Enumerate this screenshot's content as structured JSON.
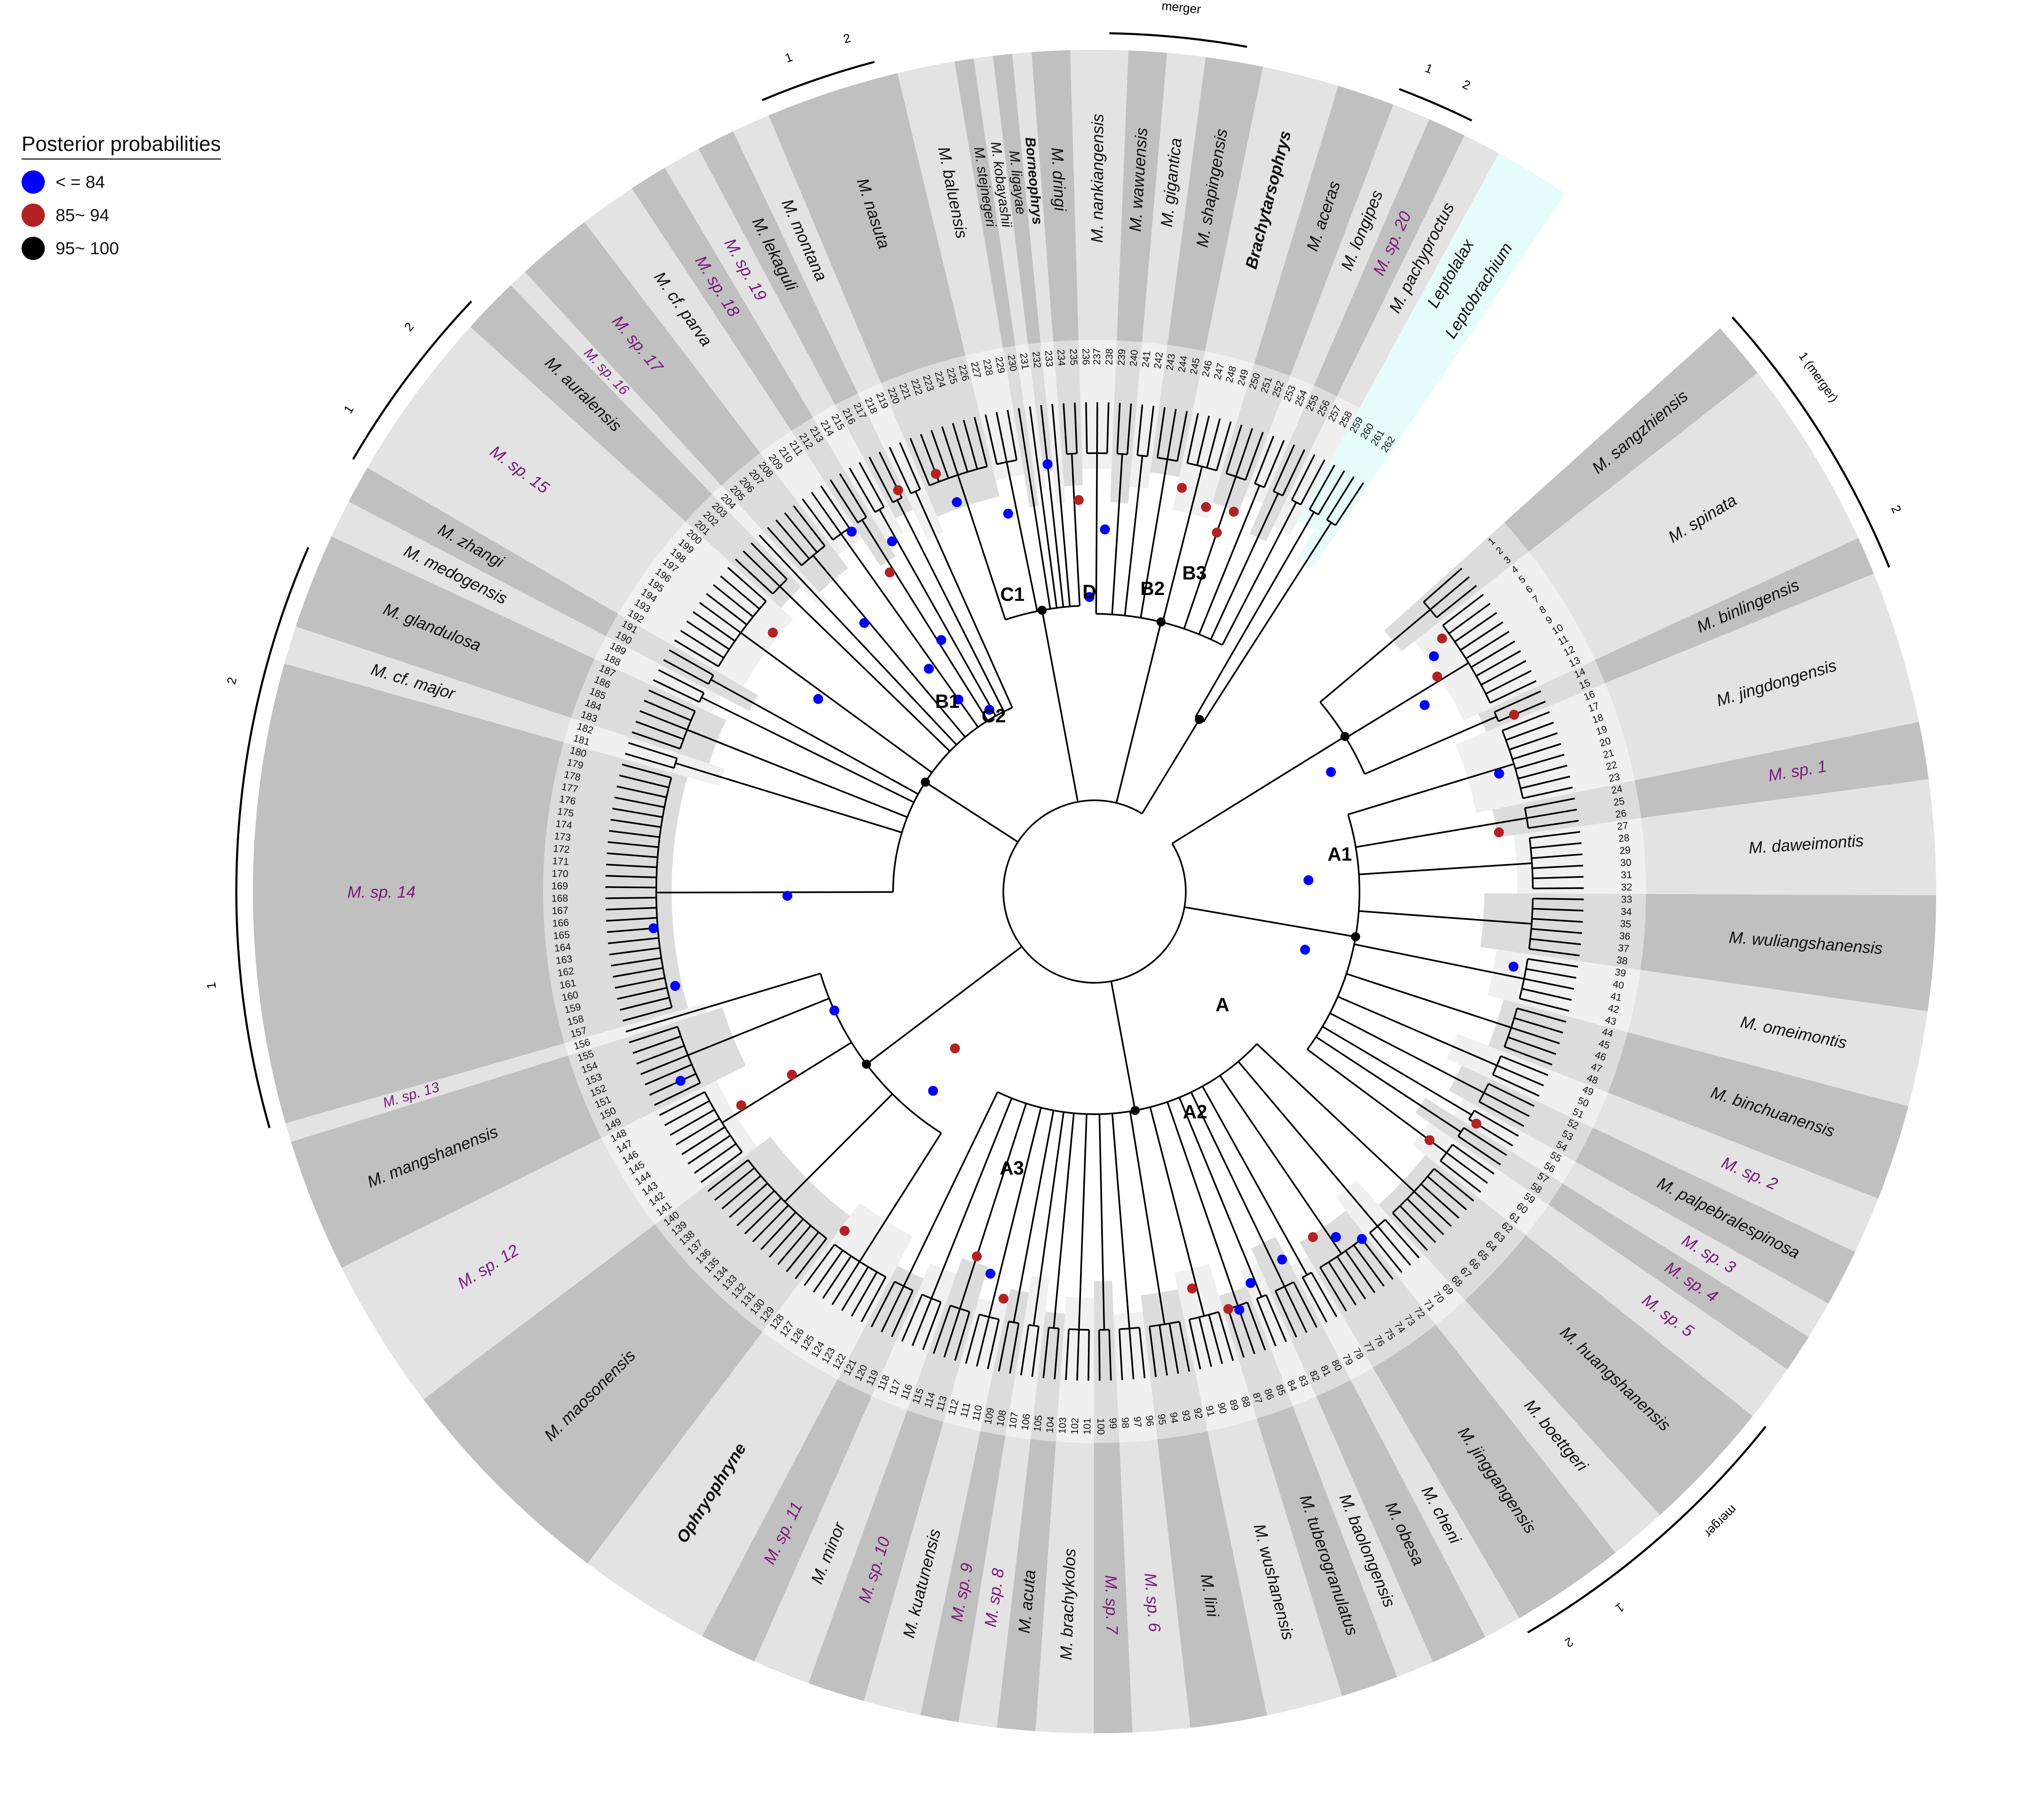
{
  "legend": {
    "title": "Posterior probabilities",
    "items": [
      {
        "label": "< = 84",
        "color": "#0000ff"
      },
      {
        "label": "85~ 94",
        "color": "#b22222"
      },
      {
        "label": "95~ 100",
        "color": "#000000"
      }
    ]
  },
  "colors": {
    "sector_dark": "#c0c0c0",
    "sector_light": "#e3e3e3",
    "outgroup": "#e6fbfc",
    "taxon_default": "#111111",
    "taxon_highlight": "#7a1a7a",
    "branch": "#000000"
  },
  "tips": [
    "1",
    "2",
    "3",
    "4",
    "5",
    "6",
    "7",
    "8",
    "9",
    "10",
    "11",
    "12",
    "13",
    "14",
    "15",
    "16",
    "17",
    "18",
    "19",
    "20",
    "21",
    "22",
    "23",
    "24",
    "25",
    "26",
    "27",
    "28",
    "29",
    "30",
    "31",
    "32",
    "33",
    "34",
    "35",
    "36",
    "37",
    "38",
    "39",
    "40",
    "41",
    "42",
    "43",
    "44",
    "45",
    "46",
    "47",
    "48",
    "49",
    "50",
    "51",
    "52",
    "53",
    "54",
    "55",
    "56",
    "57",
    "58",
    "59",
    "60",
    "61",
    "62",
    "63",
    "64",
    "65",
    "66",
    "67",
    "68",
    "69",
    "70",
    "71",
    "72",
    "73",
    "74",
    "75",
    "76",
    "77",
    "78",
    "79",
    "80",
    "81",
    "82",
    "83",
    "84",
    "85",
    "86",
    "87",
    "88",
    "89",
    "90",
    "91",
    "92",
    "93",
    "94",
    "95",
    "96",
    "97",
    "98",
    "99",
    "100",
    "101",
    "102",
    "103",
    "104",
    "105",
    "106",
    "107",
    "108",
    "109",
    "110",
    "111",
    "112",
    "113",
    "114",
    "115",
    "116",
    "117",
    "118",
    "119",
    "120",
    "121",
    "122",
    "123",
    "124",
    "125",
    "126",
    "127",
    "128",
    "129",
    "130",
    "131",
    "132",
    "133",
    "134",
    "135",
    "136",
    "137",
    "138",
    "139",
    "140",
    "141",
    "142",
    "143",
    "144",
    "145",
    "146",
    "147",
    "148",
    "149",
    "150",
    "151",
    "152",
    "153",
    "154",
    "155",
    "156",
    "157",
    "158",
    "159",
    "160",
    "161",
    "162",
    "163",
    "164",
    "165",
    "166",
    "167",
    "168",
    "169",
    "170",
    "171",
    "172",
    "173",
    "174",
    "175",
    "176",
    "177",
    "178",
    "179",
    "180",
    "181",
    "182",
    "183",
    "184",
    "185",
    "186",
    "187",
    "188",
    "189",
    "190",
    "191",
    "192",
    "193",
    "194",
    "195",
    "196",
    "197",
    "198",
    "199",
    "200",
    "201",
    "202",
    "203",
    "204",
    "205",
    "206",
    "207",
    "208",
    "209",
    "210",
    "211",
    "212",
    "213",
    "214",
    "215",
    "216",
    "217",
    "218",
    "219",
    "220",
    "221",
    "222",
    "223",
    "224",
    "225",
    "226",
    "227",
    "228",
    "229",
    "230",
    "231",
    "232",
    "233",
    "234",
    "235",
    "236",
    "237",
    "238",
    "239",
    "240",
    "241",
    "242",
    "243",
    "244",
    "245",
    "246",
    "247",
    "248",
    "249",
    "250",
    "251",
    "252",
    "253",
    "254",
    "255",
    "256",
    "257",
    "258",
    "259",
    "260",
    "261",
    "262"
  ],
  "clades": [
    {
      "name": "M. sangzhiensis",
      "tips": [
        1,
        3
      ],
      "shade": "dark",
      "style": "italic"
    },
    {
      "name": "M. spinata",
      "tips": [
        4,
        13
      ],
      "shade": "light",
      "style": "italic"
    },
    {
      "name": "M. binlingensis",
      "tips": [
        14,
        15
      ],
      "shade": "dark",
      "style": "italic"
    },
    {
      "name": "M. jingdongensis",
      "tips": [
        16,
        23
      ],
      "shade": "light",
      "style": "italic"
    },
    {
      "name": "M. sp. 1",
      "tips": [
        24,
        26
      ],
      "shade": "dark",
      "style": "highlight"
    },
    {
      "name": "M. daweimontis",
      "tips": [
        27,
        32
      ],
      "shade": "light",
      "style": "italic"
    },
    {
      "name": "M. wuliangshanensis",
      "tips": [
        33,
        38
      ],
      "shade": "dark",
      "style": "italic"
    },
    {
      "name": "M. omeimontis",
      "tips": [
        39,
        43
      ],
      "shade": "light",
      "style": "italic"
    },
    {
      "name": "M. binchuanensis",
      "tips": [
        44,
        48
      ],
      "shade": "dark",
      "style": "italic"
    },
    {
      "name": "M. sp. 2",
      "tips": [
        49,
        51
      ],
      "shade": "light",
      "style": "highlight"
    },
    {
      "name": "M. palpebralespinosa",
      "tips": [
        52,
        54
      ],
      "shade": "dark",
      "style": "italic"
    },
    {
      "name": "M. sp. 3",
      "tips": [
        55,
        56
      ],
      "shade": "light",
      "style": "highlight"
    },
    {
      "name": "M. sp. 4",
      "tips": [
        57,
        58
      ],
      "shade": "dark",
      "style": "highlight"
    },
    {
      "name": "M. sp. 5",
      "tips": [
        59,
        61
      ],
      "shade": "light",
      "style": "highlight"
    },
    {
      "name": "M. huangshanensis",
      "tips": [
        62,
        68
      ],
      "shade": "dark",
      "style": "italic"
    },
    {
      "name": "M. boettgeri",
      "tips": [
        69,
        71
      ],
      "shade": "light",
      "style": "italic"
    },
    {
      "name": "M. jinggangensis",
      "tips": [
        72,
        77
      ],
      "shade": "dark",
      "style": "italic"
    },
    {
      "name": "M. cheni",
      "tips": [
        78,
        79
      ],
      "shade": "light",
      "style": "italic"
    },
    {
      "name": "M. obesa",
      "tips": [
        80,
        82
      ],
      "shade": "dark",
      "style": "italic"
    },
    {
      "name": "M. baolongensis",
      "tips": [
        83,
        84
      ],
      "shade": "light",
      "style": "italic"
    },
    {
      "name": "M. tuberogranulatus",
      "tips": [
        85,
        87
      ],
      "shade": "dark",
      "style": "italic"
    },
    {
      "name": "M. wushanensis",
      "tips": [
        88,
        91
      ],
      "shade": "light",
      "style": "italic"
    },
    {
      "name": "M. lini",
      "tips": [
        92,
        95
      ],
      "shade": "dark",
      "style": "italic"
    },
    {
      "name": "M. sp. 6",
      "tips": [
        96,
        98
      ],
      "shade": "light",
      "style": "highlight"
    },
    {
      "name": "M. sp. 7",
      "tips": [
        99,
        100
      ],
      "shade": "dark",
      "style": "highlight"
    },
    {
      "name": "M. brachykolos",
      "tips": [
        101,
        103
      ],
      "shade": "light",
      "style": "italic"
    },
    {
      "name": "M. acuta",
      "tips": [
        104,
        105
      ],
      "shade": "dark",
      "style": "italic"
    },
    {
      "name": "M. sp. 8",
      "tips": [
        106,
        107
      ],
      "shade": "light",
      "style": "highlight"
    },
    {
      "name": "M. sp. 9",
      "tips": [
        108,
        109
      ],
      "shade": "dark",
      "style": "highlight"
    },
    {
      "name": "M. kuatunensis",
      "tips": [
        110,
        112
      ],
      "shade": "light",
      "style": "italic"
    },
    {
      "name": "M. sp. 10",
      "tips": [
        113,
        115
      ],
      "shade": "dark",
      "style": "highlight"
    },
    {
      "name": "M. minor",
      "tips": [
        116,
        118
      ],
      "shade": "light",
      "style": "italic"
    },
    {
      "name": "M. sp. 11",
      "tips": [
        119,
        121
      ],
      "shade": "dark",
      "style": "highlight"
    },
    {
      "name": "Ophryophryne",
      "tips": [
        122,
        128
      ],
      "shade": "light",
      "style": "bold"
    },
    {
      "name": "M. maosonensis",
      "tips": [
        129,
        140
      ],
      "shade": "dark",
      "style": "italic"
    },
    {
      "name": "M. sp. 12",
      "tips": [
        141,
        148
      ],
      "shade": "light",
      "style": "highlight"
    },
    {
      "name": "M. mangshanensis",
      "tips": [
        149,
        155
      ],
      "shade": "dark",
      "style": "italic"
    },
    {
      "name": "M. sp. 13",
      "tips": [
        156,
        156
      ],
      "shade": "light",
      "style": "highlight"
    },
    {
      "name": "M. sp. 14",
      "tips": [
        157,
        180
      ],
      "shade": "dark",
      "style": "highlight"
    },
    {
      "name": "M. cf. major",
      "tips": [
        181,
        182
      ],
      "shade": "light",
      "style": "italic"
    },
    {
      "name": "M. glandulosa",
      "tips": [
        183,
        187
      ],
      "shade": "dark",
      "style": "italic"
    },
    {
      "name": "M. medogensis",
      "tips": [
        188,
        189
      ],
      "shade": "light",
      "style": "italic"
    },
    {
      "name": "M. zhangi",
      "tips": [
        190,
        191
      ],
      "shade": "dark",
      "style": "italic"
    },
    {
      "name": "M. sp. 15",
      "tips": [
        192,
        200
      ],
      "shade": "light",
      "style": "highlight"
    },
    {
      "name": "M. auralensis",
      "tips": [
        201,
        203
      ],
      "shade": "dark",
      "style": "italic"
    },
    {
      "name": "M. sp. 16",
      "tips": [
        204,
        204
      ],
      "shade": "light",
      "style": "highlight"
    },
    {
      "name": "M. sp. 17",
      "tips": [
        205,
        208
      ],
      "shade": "dark",
      "style": "highlight"
    },
    {
      "name": "M. cf. parva",
      "tips": [
        209,
        211
      ],
      "shade": "light",
      "style": "italic"
    },
    {
      "name": "M. sp. 18",
      "tips": [
        212,
        213
      ],
      "shade": "dark",
      "style": "highlight"
    },
    {
      "name": "M. sp. 19",
      "tips": [
        214,
        215
      ],
      "shade": "light",
      "style": "highlight"
    },
    {
      "name": "M. lekaguli",
      "tips": [
        216,
        217
      ],
      "shade": "dark",
      "style": "italic"
    },
    {
      "name": "M. montana",
      "tips": [
        218,
        219
      ],
      "shade": "light",
      "style": "italic"
    },
    {
      "name": "M. nasuta",
      "tips": [
        220,
        226
      ],
      "shade": "dark",
      "style": "italic"
    },
    {
      "name": "M. baluensis",
      "tips": [
        227,
        229
      ],
      "shade": "light",
      "style": "italic"
    },
    {
      "name": "M. stejnegeri",
      "tips": [
        230,
        230
      ],
      "shade": "dark",
      "style": "italic"
    },
    {
      "name": "M. kobayashii",
      "tips": [
        231,
        231
      ],
      "shade": "light",
      "style": "italic"
    },
    {
      "name": "M. ligayae",
      "tips": [
        232,
        232
      ],
      "shade": "dark",
      "style": "italic"
    },
    {
      "name": "Borneophrys",
      "tips": [
        233,
        233
      ],
      "shade": "light",
      "style": "bold"
    },
    {
      "name": "M. dringi",
      "tips": [
        234,
        235
      ],
      "shade": "dark",
      "style": "italic"
    },
    {
      "name": "M. nankiangensis",
      "tips": [
        236,
        238
      ],
      "shade": "light",
      "style": "italic"
    },
    {
      "name": "M. wawuensis",
      "tips": [
        239,
        240
      ],
      "shade": "dark",
      "style": "italic"
    },
    {
      "name": "M. gigantica",
      "tips": [
        241,
        242
      ],
      "shade": "light",
      "style": "italic"
    },
    {
      "name": "M. shapingensis",
      "tips": [
        243,
        245
      ],
      "shade": "dark",
      "style": "italic"
    },
    {
      "name": "Brachytarsophrys",
      "tips": [
        246,
        249
      ],
      "shade": "light",
      "style": "bold"
    },
    {
      "name": "M. aceras",
      "tips": [
        250,
        252
      ],
      "shade": "dark",
      "style": "italic"
    },
    {
      "name": "M. longipes",
      "tips": [
        253,
        254
      ],
      "shade": "light",
      "style": "italic"
    },
    {
      "name": "M. sp. 20",
      "tips": [
        255,
        256
      ],
      "shade": "dark",
      "style": "highlight"
    },
    {
      "name": "M. pachyproctus",
      "tips": [
        257,
        258
      ],
      "shade": "light",
      "style": "italic"
    },
    {
      "name": "Leptolalax",
      "tips": [
        259,
        260
      ],
      "shade": "outgroup",
      "style": "italic"
    },
    {
      "name": "Leptobrachium",
      "tips": [
        261,
        262
      ],
      "shade": "outgroup",
      "style": "italic"
    }
  ],
  "node_labels": [
    {
      "label": "A",
      "tip": 64,
      "depth": 0.2
    },
    {
      "label": "A1",
      "tip": 26,
      "depth": 0.38
    },
    {
      "label": "A2",
      "tip": 82,
      "depth": 0.37
    },
    {
      "label": "A3",
      "tip": 113,
      "depth": 0.48
    },
    {
      "label": "B1",
      "tip": 208,
      "depth": 0.36
    },
    {
      "label": "B2",
      "tip": 245,
      "depth": 0.52
    },
    {
      "label": "B3",
      "tip": 250,
      "depth": 0.58
    },
    {
      "label": "C1",
      "tip": 225,
      "depth": 0.52
    },
    {
      "label": "C2",
      "tip": 214,
      "depth": 0.27
    },
    {
      "label": "D",
      "tip": 236,
      "depth": 0.5
    }
  ],
  "support_nodes": [
    {
      "tip": 6,
      "depth": 0.8,
      "pp": "blue"
    },
    {
      "tip": 10,
      "depth": 0.72,
      "pp": "blue"
    },
    {
      "tip": 5,
      "depth": 0.84,
      "pp": "red"
    },
    {
      "tip": 8,
      "depth": 0.78,
      "pp": "red"
    },
    {
      "tip": 15,
      "depth": 0.9,
      "pp": "red"
    },
    {
      "tip": 20,
      "depth": 0.82,
      "pp": "blue"
    },
    {
      "tip": 26,
      "depth": 0.79,
      "pp": "red"
    },
    {
      "tip": 40,
      "depth": 0.83,
      "pp": "blue"
    },
    {
      "tip": 56,
      "depth": 0.88,
      "pp": "red"
    },
    {
      "tip": 72,
      "depth": 0.86,
      "pp": "blue"
    },
    {
      "tip": 74,
      "depth": 0.82,
      "pp": "blue"
    },
    {
      "tip": 76,
      "depth": 0.79,
      "pp": "red"
    },
    {
      "tip": 80,
      "depth": 0.8,
      "pp": "blue"
    },
    {
      "tip": 84,
      "depth": 0.82,
      "pp": "blue"
    },
    {
      "tip": 86,
      "depth": 0.87,
      "pp": "blue"
    },
    {
      "tip": 87,
      "depth": 0.86,
      "pp": "red"
    },
    {
      "tip": 90,
      "depth": 0.79,
      "pp": "red"
    },
    {
      "tip": 110,
      "depth": 0.81,
      "pp": "red"
    },
    {
      "tip": 112,
      "depth": 0.76,
      "pp": "blue"
    },
    {
      "tip": 114,
      "depth": 0.73,
      "pp": "red"
    },
    {
      "tip": 128,
      "depth": 0.82,
      "pp": "red"
    },
    {
      "tip": 145,
      "depth": 0.8,
      "pp": "red"
    },
    {
      "tip": 150,
      "depth": 0.9,
      "pp": "blue"
    },
    {
      "tip": 145,
      "depth": 0.66,
      "pp": "red"
    },
    {
      "tip": 150,
      "depth": 0.5,
      "pp": "blue"
    },
    {
      "tip": 159,
      "depth": 0.84,
      "pp": "blue"
    },
    {
      "tip": 165,
      "depth": 0.87,
      "pp": "blue"
    },
    {
      "tip": 168,
      "depth": 0.55,
      "pp": "blue"
    },
    {
      "tip": 195,
      "depth": 0.62,
      "pp": "blue"
    },
    {
      "tip": 198,
      "depth": 0.8,
      "pp": "red"
    },
    {
      "tip": 206,
      "depth": 0.66,
      "pp": "blue"
    },
    {
      "tip": 211,
      "depth": 0.85,
      "pp": "blue"
    },
    {
      "tip": 212,
      "depth": 0.72,
      "pp": "red"
    },
    {
      "tip": 209,
      "depth": 0.48,
      "pp": "blue"
    },
    {
      "tip": 214,
      "depth": 0.78,
      "pp": "blue"
    },
    {
      "tip": 213,
      "depth": 0.52,
      "pp": "blue"
    },
    {
      "tip": 217,
      "depth": 0.88,
      "pp": "red"
    },
    {
      "tip": 221,
      "depth": 0.88,
      "pp": "red"
    },
    {
      "tip": 222,
      "depth": 0.8,
      "pp": "blue"
    },
    {
      "tip": 214,
      "depth": 0.32,
      "pp": "blue"
    },
    {
      "tip": 210,
      "depth": 0.38,
      "pp": "blue"
    },
    {
      "tip": 227,
      "depth": 0.74,
      "pp": "blue"
    },
    {
      "tip": 232,
      "depth": 0.84,
      "pp": "blue"
    },
    {
      "tip": 235,
      "depth": 0.75,
      "pp": "red"
    },
    {
      "tip": 238,
      "depth": 0.68,
      "pp": "blue"
    },
    {
      "tip": 236,
      "depth": 0.52,
      "pp": "blue"
    },
    {
      "tip": 246,
      "depth": 0.8,
      "pp": "red"
    },
    {
      "tip": 249,
      "depth": 0.77,
      "pp": "red"
    },
    {
      "tip": 251,
      "depth": 0.72,
      "pp": "red"
    },
    {
      "tip": 252,
      "depth": 0.78,
      "pp": "red"
    },
    {
      "tip": 60,
      "depth": 0.81,
      "pp": "red"
    },
    {
      "tip": 30,
      "depth": 0.33,
      "pp": "blue"
    },
    {
      "tip": 12,
      "depth": 0.45,
      "pp": "blue"
    },
    {
      "tip": 44,
      "depth": 0.34,
      "pp": "blue"
    },
    {
      "tip": 130,
      "depth": 0.43,
      "pp": "blue"
    },
    {
      "tip": 132,
      "depth": 0.32,
      "pp": "red"
    }
  ],
  "brackets": [
    {
      "label": "1 (merger)",
      "from": 1,
      "to": 10
    },
    {
      "label": "2",
      "from": 11,
      "to": 15
    },
    {
      "label": "merger",
      "from": 62,
      "to": 71
    },
    {
      "label": "1",
      "from": 72,
      "to": 74
    },
    {
      "label": "2",
      "from": 75,
      "to": 77
    },
    {
      "label": "1",
      "from": 157,
      "to": 171
    },
    {
      "label": "2",
      "from": 172,
      "to": 186
    },
    {
      "label": "1",
      "from": 192,
      "to": 195
    },
    {
      "label": "2",
      "from": 196,
      "to": 201
    },
    {
      "label": "1",
      "from": 220,
      "to": 223
    },
    {
      "label": "2",
      "from": 224,
      "to": 225
    },
    {
      "label": "merger",
      "from": 238,
      "to": 244
    },
    {
      "label": "1",
      "from": 253,
      "to": 254
    },
    {
      "label": "2",
      "from": 255,
      "to": 256
    }
  ]
}
